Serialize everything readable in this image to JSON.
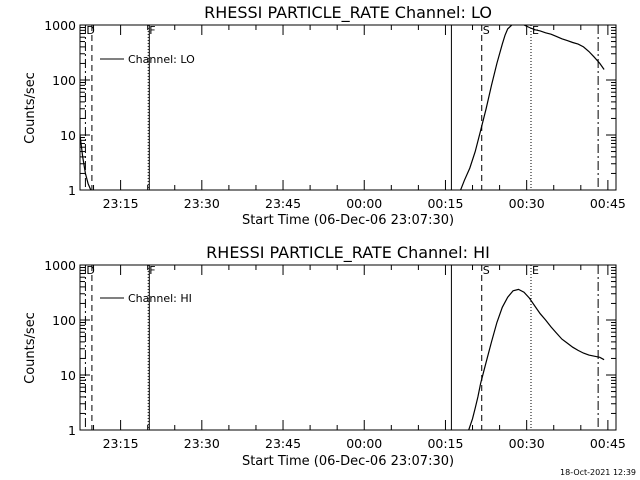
{
  "chart_data": [
    {
      "type": "line",
      "title": "RHESSI PARTICLE_RATE Channel: LO",
      "xlabel": "Start Time (06-Dec-06 23:07:30)",
      "ylabel": "Counts/sec",
      "x_unit": "minutes after start time",
      "xlim": [
        0,
        99
      ],
      "ylim": [
        1,
        1000
      ],
      "yscale": "log",
      "x_ticks": [
        {
          "t": 7.5,
          "label": "23:15"
        },
        {
          "t": 22.5,
          "label": "23:30"
        },
        {
          "t": 37.5,
          "label": "23:45"
        },
        {
          "t": 52.5,
          "label": "00:00"
        },
        {
          "t": 67.5,
          "label": "00:15"
        },
        {
          "t": 82.5,
          "label": "00:30"
        },
        {
          "t": 97.5,
          "label": "00:45"
        }
      ],
      "y_ticks": [
        {
          "v": 1,
          "label": "1"
        },
        {
          "v": 10,
          "label": "10"
        },
        {
          "v": 100,
          "label": "100"
        },
        {
          "v": 1000,
          "label": "1000"
        }
      ],
      "legend": {
        "label": "Channel: LO",
        "position": "top-left"
      },
      "series": [
        {
          "name": "Channel: LO",
          "segments": [
            {
              "x": [
                0.0,
                0.5,
                1.0,
                1.5,
                2.0
              ],
              "y": [
                10,
                4,
                2,
                1.3,
                1
              ]
            },
            {
              "x": [
                70.3,
                71.0,
                72.0,
                73.0,
                74.0,
                75.0,
                76.0,
                77.0,
                78.0,
                78.5,
                79.0,
                80.0,
                81.0,
                82.0,
                83.0,
                84.0,
                85.0,
                86.0,
                87.0,
                88.0,
                89.0,
                90.0,
                91.0,
                92.0,
                93.0,
                94.0,
                95.0,
                96.0,
                96.8
              ],
              "y": [
                1,
                1.5,
                2.5,
                5,
                12,
                30,
                80,
                200,
                450,
                650,
                850,
                1050,
                1100,
                1000,
                900,
                820,
                780,
                720,
                680,
                620,
                560,
                520,
                480,
                450,
                400,
                330,
                260,
                200,
                155
              ]
            }
          ]
        }
      ],
      "markers": [
        {
          "t": 1.0,
          "style": "dashdot",
          "label": "D"
        },
        {
          "t": 2.2,
          "style": "dashed",
          "label": ""
        },
        {
          "t": 12.6,
          "style": "dotted",
          "label": "F"
        },
        {
          "t": 12.8,
          "style": "solid",
          "label": ""
        },
        {
          "t": 68.6,
          "style": "solid",
          "label": ""
        },
        {
          "t": 74.2,
          "style": "dashed",
          "label": "S"
        },
        {
          "t": 83.3,
          "style": "dotted",
          "label": "E"
        },
        {
          "t": 95.7,
          "style": "dashdot",
          "label": ""
        }
      ]
    },
    {
      "type": "line",
      "title": "RHESSI PARTICLE_RATE Channel: HI",
      "xlabel": "Start Time (06-Dec-06 23:07:30)",
      "ylabel": "Counts/sec",
      "x_unit": "minutes after start time",
      "xlim": [
        0,
        99
      ],
      "ylim": [
        1,
        1000
      ],
      "yscale": "log",
      "x_ticks": [
        {
          "t": 7.5,
          "label": "23:15"
        },
        {
          "t": 22.5,
          "label": "23:30"
        },
        {
          "t": 37.5,
          "label": "23:45"
        },
        {
          "t": 52.5,
          "label": "00:00"
        },
        {
          "t": 67.5,
          "label": "00:15"
        },
        {
          "t": 82.5,
          "label": "00:30"
        },
        {
          "t": 97.5,
          "label": "00:45"
        }
      ],
      "y_ticks": [
        {
          "v": 1,
          "label": "1"
        },
        {
          "v": 10,
          "label": "10"
        },
        {
          "v": 100,
          "label": "100"
        },
        {
          "v": 1000,
          "label": "1000"
        }
      ],
      "legend": {
        "label": "Channel: HI",
        "position": "top-left"
      },
      "series": [
        {
          "name": "Channel: HI",
          "segments": [
            {
              "x": [
                71.8,
                72.5,
                73.0,
                73.5,
                74.0,
                74.5,
                75.0,
                76.0,
                77.0,
                78.0,
                79.0,
                80.0,
                81.0,
                82.0,
                83.0,
                84.0,
                85.0,
                86.0,
                87.0,
                88.0,
                89.0,
                90.0,
                91.0,
                92.0,
                93.0,
                94.0,
                95.0,
                96.0,
                96.8
              ],
              "y": [
                1,
                1.6,
                2.5,
                4,
                7,
                11,
                17,
                40,
                90,
                170,
                260,
                340,
                360,
                320,
                250,
                180,
                130,
                100,
                75,
                58,
                45,
                38,
                32,
                28,
                25,
                23,
                22,
                21,
                19
              ]
            }
          ]
        }
      ],
      "markers": [
        {
          "t": 1.0,
          "style": "dashdot",
          "label": "D"
        },
        {
          "t": 2.2,
          "style": "dashed",
          "label": ""
        },
        {
          "t": 12.6,
          "style": "dotted",
          "label": "F"
        },
        {
          "t": 12.8,
          "style": "solid",
          "label": ""
        },
        {
          "t": 68.6,
          "style": "solid",
          "label": ""
        },
        {
          "t": 74.2,
          "style": "dashed",
          "label": "S"
        },
        {
          "t": 83.3,
          "style": "dotted",
          "label": "E"
        },
        {
          "t": 95.7,
          "style": "dashdot",
          "label": ""
        }
      ]
    }
  ],
  "footer": {
    "timestamp": "18-Oct-2021 12:39"
  }
}
